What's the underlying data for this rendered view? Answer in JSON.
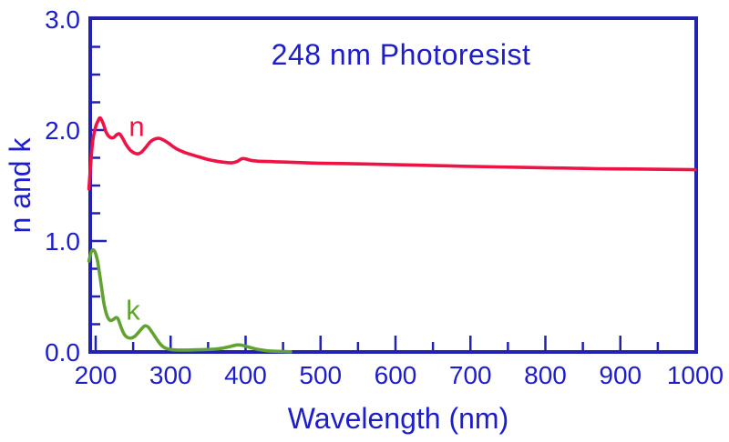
{
  "colors": {
    "axis_blue": "#2222b2",
    "text_blue": "#1d1dcb",
    "n_red": "#ef1245",
    "k_green": "#62a233",
    "background": "#ffffff"
  },
  "chart_data": {
    "type": "line",
    "title": "248 nm Photoresist",
    "xlabel": "Wavelength (nm)",
    "ylabel": "n and k",
    "xlim": [
      190,
      1000
    ],
    "ylim": [
      0.0,
      3.0
    ],
    "grid": false,
    "legend": "inline labels on curves",
    "x_major_ticks": [
      200,
      300,
      400,
      500,
      600,
      700,
      800,
      900,
      1000
    ],
    "x_tick_labels": [
      "200",
      "300",
      "400",
      "500",
      "600",
      "700",
      "800",
      "900",
      "1000"
    ],
    "x_minor_ticks": [
      250,
      350,
      450,
      550,
      650,
      750,
      850,
      950
    ],
    "y_major_ticks": [
      0.0,
      1.0,
      2.0,
      3.0
    ],
    "y_tick_labels": [
      "0.0",
      "1.0",
      "2.0",
      "3.0"
    ],
    "y_minor_ticks": [
      0.25,
      0.5,
      0.75,
      1.25,
      1.5,
      1.75,
      2.25,
      2.5,
      2.75
    ],
    "series": [
      {
        "name": "n",
        "label": "n",
        "color": "#ef1245",
        "label_anchor": {
          "x_nm": 256,
          "y_val": 2.03
        },
        "points": [
          [
            191,
            1.47
          ],
          [
            193,
            1.66
          ],
          [
            196,
            1.9
          ],
          [
            200,
            2.03
          ],
          [
            203,
            2.08
          ],
          [
            206,
            2.11
          ],
          [
            210,
            2.06
          ],
          [
            214,
            1.98
          ],
          [
            219,
            1.935
          ],
          [
            224,
            1.933
          ],
          [
            228,
            1.958
          ],
          [
            232,
            1.965
          ],
          [
            236,
            1.925
          ],
          [
            241,
            1.865
          ],
          [
            246,
            1.82
          ],
          [
            251,
            1.795
          ],
          [
            256,
            1.785
          ],
          [
            261,
            1.8
          ],
          [
            267,
            1.845
          ],
          [
            273,
            1.895
          ],
          [
            279,
            1.92
          ],
          [
            285,
            1.925
          ],
          [
            291,
            1.908
          ],
          [
            298,
            1.878
          ],
          [
            308,
            1.83
          ],
          [
            320,
            1.795
          ],
          [
            333,
            1.768
          ],
          [
            347,
            1.74
          ],
          [
            361,
            1.72
          ],
          [
            373,
            1.708
          ],
          [
            382,
            1.705
          ],
          [
            389,
            1.718
          ],
          [
            395,
            1.742
          ],
          [
            400,
            1.74
          ],
          [
            407,
            1.727
          ],
          [
            416,
            1.72
          ],
          [
            430,
            1.716
          ],
          [
            448,
            1.712
          ],
          [
            470,
            1.707
          ],
          [
            495,
            1.702
          ],
          [
            525,
            1.698
          ],
          [
            560,
            1.694
          ],
          [
            600,
            1.688
          ],
          [
            645,
            1.681
          ],
          [
            690,
            1.674
          ],
          [
            735,
            1.668
          ],
          [
            780,
            1.662
          ],
          [
            825,
            1.657
          ],
          [
            870,
            1.652
          ],
          [
            915,
            1.649
          ],
          [
            960,
            1.646
          ],
          [
            1000,
            1.643
          ]
        ]
      },
      {
        "name": "k",
        "label": "k",
        "color": "#62a233",
        "label_anchor": {
          "x_nm": 250,
          "y_val": 0.39
        },
        "points": [
          [
            191,
            0.82
          ],
          [
            194,
            0.9
          ],
          [
            197,
            0.92
          ],
          [
            200,
            0.885
          ],
          [
            203,
            0.8
          ],
          [
            207,
            0.62
          ],
          [
            211,
            0.44
          ],
          [
            215,
            0.33
          ],
          [
            219,
            0.285
          ],
          [
            223,
            0.29
          ],
          [
            227,
            0.31
          ],
          [
            230,
            0.295
          ],
          [
            234,
            0.22
          ],
          [
            238,
            0.16
          ],
          [
            242,
            0.133
          ],
          [
            247,
            0.125
          ],
          [
            252,
            0.14
          ],
          [
            257,
            0.175
          ],
          [
            262,
            0.215
          ],
          [
            266,
            0.235
          ],
          [
            270,
            0.225
          ],
          [
            275,
            0.18
          ],
          [
            281,
            0.12
          ],
          [
            287,
            0.065
          ],
          [
            293,
            0.035
          ],
          [
            300,
            0.022
          ],
          [
            310,
            0.017
          ],
          [
            322,
            0.017
          ],
          [
            335,
            0.02
          ],
          [
            348,
            0.022
          ],
          [
            360,
            0.026
          ],
          [
            370,
            0.035
          ],
          [
            380,
            0.05
          ],
          [
            388,
            0.063
          ],
          [
            394,
            0.062
          ],
          [
            401,
            0.05
          ],
          [
            409,
            0.035
          ],
          [
            417,
            0.022
          ],
          [
            426,
            0.013
          ],
          [
            436,
            0.007
          ],
          [
            448,
            0.004
          ],
          [
            460,
            0.002
          ]
        ]
      }
    ]
  }
}
